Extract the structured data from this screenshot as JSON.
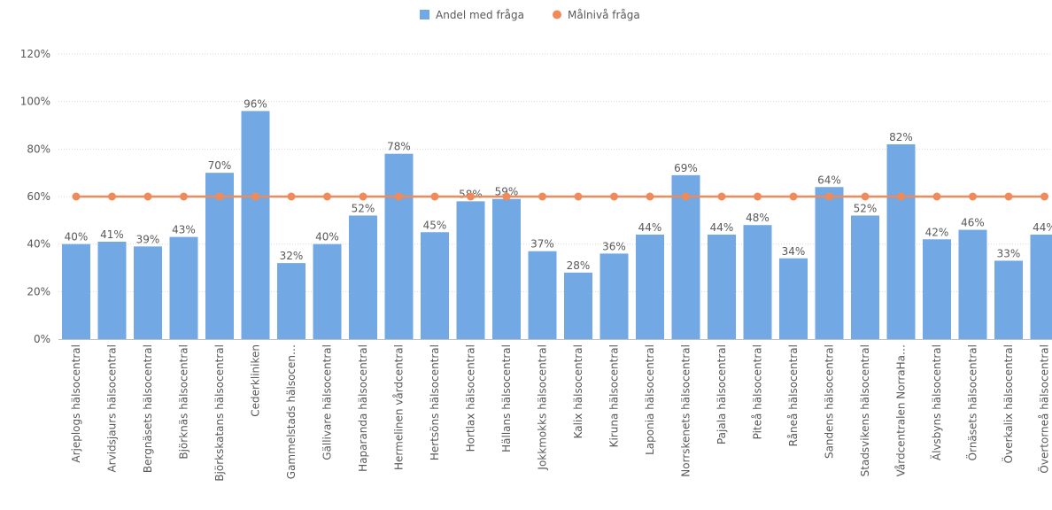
{
  "chart_data": {
    "type": "bar",
    "categories": [
      "Arjeplogs hälsocentral",
      "Arvidsjaurs hälsocentral",
      "Bergnäsets hälsocentral",
      "Björknäs hälsocentral",
      "Björkskatans hälsocentral",
      "Cederkliniken",
      "Gammelstads hälsocen…",
      "Gällivare hälsocentral",
      "Haparanda hälsocentral",
      "Hermelinen vårdcentral",
      "Hertsöns hälsocentral",
      "Hortlax hälsocentral",
      "Hällans hälsocentral",
      "Jokkmokks hälsocentral",
      "Kalix hälsocentral",
      "Kiruna hälsocentral",
      "Laponia hälsocentral",
      "Norrskenets hälsocentral",
      "Pajala hälsocentral",
      "Piteå hälsocentral",
      "Råneå hälsocentral",
      "Sandens hälsocentral",
      "Stadsvikens hälsocentral",
      "Vårdcentralen NorraHa…",
      "Älvsbyns hälsocentral",
      "Örnäsets hälsocentral",
      "Överkalix hälsocentral",
      "Övertorneå hälsocentral"
    ],
    "series": [
      {
        "name": "Andel med fråga",
        "kind": "bar",
        "color": "#72a8e3",
        "values": [
          40,
          41,
          39,
          43,
          70,
          96,
          32,
          40,
          52,
          78,
          45,
          58,
          59,
          37,
          28,
          36,
          44,
          69,
          44,
          48,
          34,
          64,
          52,
          82,
          42,
          46,
          33,
          44
        ],
        "labels": [
          "40%",
          "41%",
          "39%",
          "43%",
          "70%",
          "96%",
          "32%",
          "40%",
          "52%",
          "78%",
          "45%",
          "58%",
          "59%",
          "37%",
          "28%",
          "36%",
          "44%",
          "69%",
          "44%",
          "48%",
          "34%",
          "64%",
          "52%",
          "82%",
          "42%",
          "46%",
          "33%",
          "44%"
        ]
      },
      {
        "name": "Målnivå fråga",
        "kind": "line",
        "color": "#ef8a5a",
        "values": [
          60,
          60,
          60,
          60,
          60,
          60,
          60,
          60,
          60,
          60,
          60,
          60,
          60,
          60,
          60,
          60,
          60,
          60,
          60,
          60,
          60,
          60,
          60,
          60,
          60,
          60,
          60,
          60
        ]
      }
    ],
    "y_ticks": [
      "0%",
      "20%",
      "40%",
      "60%",
      "80%",
      "100%",
      "120%"
    ],
    "ylim": [
      0,
      120
    ],
    "grid": true,
    "legend_position": "top-center"
  }
}
